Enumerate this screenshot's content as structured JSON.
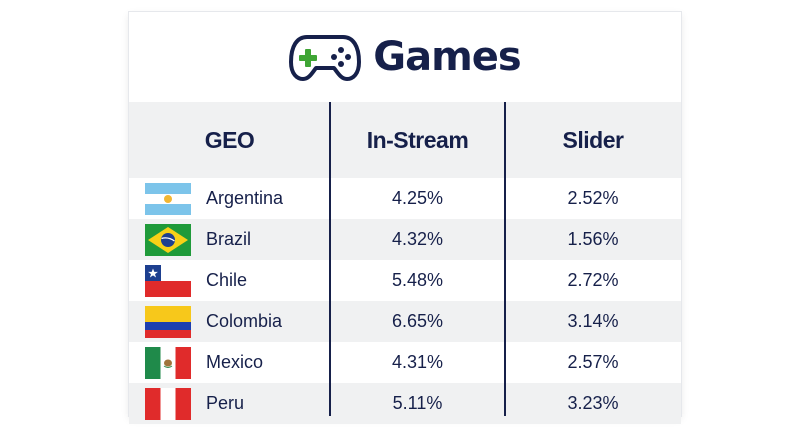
{
  "title": "Games",
  "columns": [
    "GEO",
    "In-Stream",
    "Slider"
  ],
  "rows": [
    {
      "geo": "Argentina",
      "flag": "argentina-flag-icon",
      "in_stream": "4.25%",
      "slider": "2.52%"
    },
    {
      "geo": "Brazil",
      "flag": "brazil-flag-icon",
      "in_stream": "4.32%",
      "slider": "1.56%"
    },
    {
      "geo": "Chile",
      "flag": "chile-flag-icon",
      "in_stream": "5.48%",
      "slider": "2.72%"
    },
    {
      "geo": "Colombia",
      "flag": "colombia-flag-icon",
      "in_stream": "6.65%",
      "slider": "3.14%"
    },
    {
      "geo": "Mexico",
      "flag": "mexico-flag-icon",
      "in_stream": "4.31%",
      "slider": "2.57%"
    },
    {
      "geo": "Peru",
      "flag": "peru-flag-icon",
      "in_stream": "5.11%",
      "slider": "3.23%"
    }
  ],
  "colors": {
    "text": "#16204a",
    "accent": "#3fa535",
    "stripe": "#f0f1f2"
  },
  "chart_data": {
    "type": "table",
    "title": "Games",
    "columns": [
      "GEO",
      "In-Stream",
      "Slider"
    ],
    "rows": [
      [
        "Argentina",
        "4.25%",
        "2.52%"
      ],
      [
        "Brazil",
        "4.32%",
        "1.56%"
      ],
      [
        "Chile",
        "5.48%",
        "2.72%"
      ],
      [
        "Colombia",
        "6.65%",
        "3.14%"
      ],
      [
        "Mexico",
        "4.31%",
        "2.57%"
      ],
      [
        "Peru",
        "5.11%",
        "3.23%"
      ]
    ]
  }
}
